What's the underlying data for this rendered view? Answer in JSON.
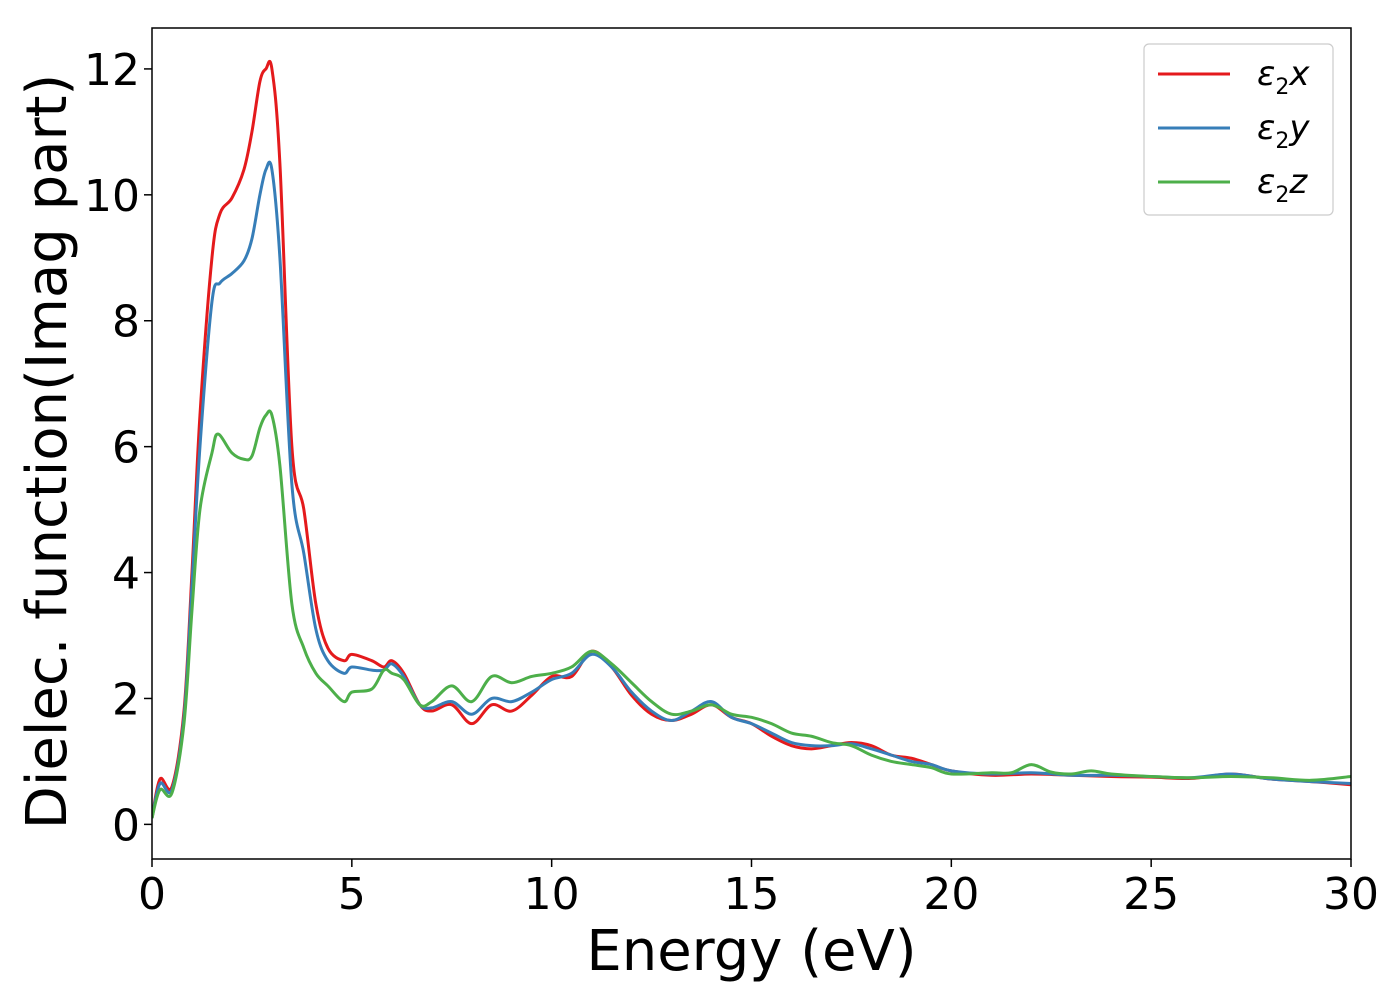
{
  "chart_data": {
    "type": "line",
    "xlabel": "Energy (eV)",
    "ylabel": "Dielec. function(Imag part)",
    "xlim": [
      0,
      30
    ],
    "ylim": [
      -0.55,
      12.65
    ],
    "xticks": [
      0,
      5,
      10,
      15,
      20,
      25,
      30
    ],
    "yticks": [
      0,
      2,
      4,
      6,
      8,
      10,
      12
    ],
    "grid": false,
    "legend_position": "top-right",
    "series": [
      {
        "name": "ε2x",
        "legend": {
          "main": "ε",
          "sub": "2",
          "var": "x"
        },
        "color": "#e41a1c",
        "x": [
          0,
          0.2,
          0.5,
          0.8,
          1.0,
          1.2,
          1.5,
          1.7,
          2.0,
          2.3,
          2.5,
          2.7,
          2.85,
          3.0,
          3.2,
          3.5,
          3.8,
          4.1,
          4.4,
          4.8,
          5.0,
          5.5,
          5.8,
          6.0,
          6.3,
          6.7,
          7.0,
          7.5,
          8.0,
          8.5,
          9.0,
          9.5,
          10.0,
          10.5,
          11.0,
          11.5,
          12.0,
          12.5,
          13.0,
          13.5,
          14.0,
          14.5,
          15.0,
          15.5,
          16.0,
          16.5,
          17.0,
          17.5,
          18.0,
          18.5,
          19.0,
          19.5,
          20.0,
          21.0,
          22.0,
          23.0,
          24.0,
          25.0,
          26.0,
          27.0,
          28.0,
          29.0,
          30.0
        ],
        "y": [
          0.1,
          0.72,
          0.6,
          1.8,
          4.0,
          6.5,
          9.0,
          9.7,
          9.95,
          10.4,
          11.0,
          11.8,
          12.0,
          12.0,
          10.5,
          6.0,
          5.0,
          3.5,
          2.8,
          2.6,
          2.7,
          2.6,
          2.5,
          2.6,
          2.4,
          1.9,
          1.8,
          1.9,
          1.6,
          1.9,
          1.8,
          2.05,
          2.35,
          2.35,
          2.75,
          2.5,
          2.05,
          1.75,
          1.65,
          1.75,
          1.9,
          1.7,
          1.6,
          1.4,
          1.25,
          1.2,
          1.25,
          1.3,
          1.25,
          1.1,
          1.05,
          0.95,
          0.85,
          0.78,
          0.8,
          0.78,
          0.76,
          0.75,
          0.73,
          0.8,
          0.72,
          0.68,
          0.63
        ]
      },
      {
        "name": "ε2y",
        "legend": {
          "main": "ε",
          "sub": "2",
          "var": "y"
        },
        "color": "#377eb8",
        "x": [
          0,
          0.2,
          0.5,
          0.8,
          1.0,
          1.2,
          1.5,
          1.7,
          2.0,
          2.3,
          2.5,
          2.7,
          2.85,
          3.0,
          3.2,
          3.5,
          3.8,
          4.1,
          4.4,
          4.8,
          5.0,
          5.5,
          5.8,
          6.0,
          6.3,
          6.7,
          7.0,
          7.5,
          8.0,
          8.5,
          9.0,
          9.5,
          10.0,
          10.5,
          11.0,
          11.5,
          12.0,
          12.5,
          13.0,
          13.5,
          14.0,
          14.5,
          15.0,
          15.5,
          16.0,
          16.5,
          17.0,
          17.5,
          18.0,
          18.5,
          19.0,
          19.5,
          20.0,
          21.0,
          22.0,
          23.0,
          24.0,
          25.0,
          26.0,
          27.0,
          28.0,
          29.0,
          30.0
        ],
        "y": [
          0.1,
          0.65,
          0.55,
          1.7,
          3.8,
          6.0,
          8.3,
          8.6,
          8.75,
          8.95,
          9.3,
          10.0,
          10.4,
          10.4,
          9.0,
          5.4,
          4.3,
          3.1,
          2.6,
          2.4,
          2.5,
          2.45,
          2.45,
          2.55,
          2.35,
          1.9,
          1.85,
          1.95,
          1.75,
          2.0,
          1.95,
          2.1,
          2.3,
          2.4,
          2.7,
          2.5,
          2.1,
          1.8,
          1.65,
          1.8,
          1.95,
          1.7,
          1.6,
          1.45,
          1.3,
          1.25,
          1.25,
          1.28,
          1.2,
          1.1,
          1.0,
          0.95,
          0.85,
          0.8,
          0.82,
          0.78,
          0.78,
          0.76,
          0.74,
          0.8,
          0.72,
          0.68,
          0.65
        ]
      },
      {
        "name": "ε2z",
        "legend": {
          "main": "ε",
          "sub": "2",
          "var": "z"
        },
        "color": "#4daf4a",
        "x": [
          0,
          0.2,
          0.5,
          0.8,
          1.0,
          1.2,
          1.5,
          1.65,
          2.0,
          2.3,
          2.5,
          2.7,
          2.85,
          3.0,
          3.2,
          3.5,
          3.8,
          4.1,
          4.4,
          4.8,
          5.0,
          5.5,
          5.8,
          6.0,
          6.3,
          6.7,
          7.0,
          7.5,
          8.0,
          8.5,
          9.0,
          9.5,
          10.0,
          10.5,
          11.0,
          11.5,
          12.0,
          12.5,
          13.0,
          13.5,
          14.0,
          14.5,
          15.0,
          15.5,
          16.0,
          16.5,
          17.0,
          17.5,
          18.0,
          18.5,
          19.0,
          19.5,
          20.0,
          21.0,
          21.5,
          22.0,
          22.5,
          23.0,
          23.5,
          24.0,
          25.0,
          26.0,
          27.0,
          28.0,
          29.0,
          30.0
        ],
        "y": [
          0.1,
          0.55,
          0.5,
          1.6,
          3.4,
          5.0,
          5.9,
          6.2,
          5.9,
          5.8,
          5.85,
          6.3,
          6.5,
          6.5,
          5.7,
          3.5,
          2.8,
          2.4,
          2.2,
          1.95,
          2.1,
          2.15,
          2.45,
          2.4,
          2.3,
          1.9,
          1.95,
          2.2,
          1.95,
          2.35,
          2.25,
          2.35,
          2.4,
          2.5,
          2.75,
          2.55,
          2.25,
          1.95,
          1.75,
          1.8,
          1.9,
          1.75,
          1.7,
          1.6,
          1.45,
          1.4,
          1.3,
          1.25,
          1.1,
          1.0,
          0.95,
          0.9,
          0.8,
          0.82,
          0.82,
          0.95,
          0.83,
          0.8,
          0.85,
          0.8,
          0.76,
          0.74,
          0.76,
          0.74,
          0.7,
          0.76
        ]
      }
    ]
  }
}
